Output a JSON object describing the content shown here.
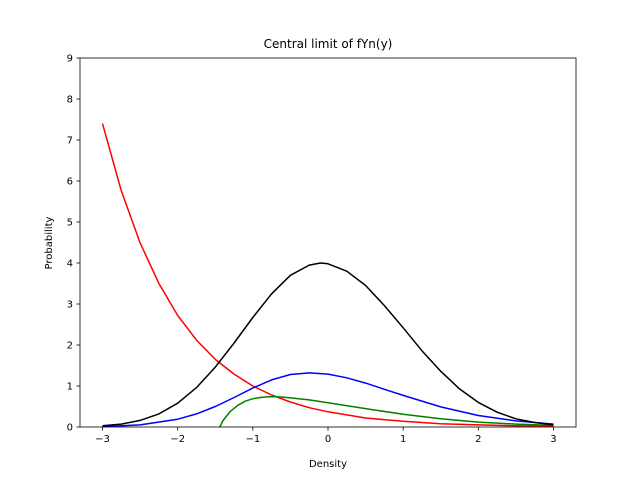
{
  "chart_data": {
    "type": "line",
    "title": "Central limit of fYn(y)",
    "xlabel": "Density",
    "ylabel": "Probability",
    "xlim": [
      -3.3,
      3.3
    ],
    "ylim": [
      0,
      9
    ],
    "grid": false,
    "legend": "none",
    "x_ticks": [
      {
        "value": -3,
        "label": "−3"
      },
      {
        "value": -2,
        "label": "−2"
      },
      {
        "value": -1,
        "label": "−1"
      },
      {
        "value": 0,
        "label": "0"
      },
      {
        "value": 1,
        "label": "1"
      },
      {
        "value": 2,
        "label": "2"
      },
      {
        "value": 3,
        "label": "3"
      }
    ],
    "y_ticks": [
      {
        "value": 0,
        "label": "0"
      },
      {
        "value": 1,
        "label": "1"
      },
      {
        "value": 2,
        "label": "2"
      },
      {
        "value": 3,
        "label": "3"
      },
      {
        "value": 4,
        "label": "4"
      },
      {
        "value": 5,
        "label": "5"
      },
      {
        "value": 6,
        "label": "6"
      },
      {
        "value": 7,
        "label": "7"
      },
      {
        "value": 8,
        "label": "8"
      },
      {
        "value": 9,
        "label": "9"
      }
    ],
    "series": [
      {
        "color": "#ff0000",
        "x": [
          -3,
          -2.75,
          -2.5,
          -2.25,
          -2,
          -1.75,
          -1.5,
          -1.25,
          -1,
          -0.75,
          -0.5,
          -0.25,
          0,
          0.5,
          1,
          1.5,
          2,
          2.5,
          3
        ],
        "y": [
          7.4,
          5.76,
          4.49,
          3.5,
          2.72,
          2.12,
          1.65,
          1.29,
          1.0,
          0.78,
          0.61,
          0.47,
          0.37,
          0.22,
          0.14,
          0.08,
          0.05,
          0.03,
          0.02
        ]
      },
      {
        "color": "#0000ff",
        "x": [
          -3,
          -2.5,
          -2,
          -1.75,
          -1.5,
          -1.25,
          -1,
          -0.75,
          -0.5,
          -0.25,
          0,
          0.25,
          0.5,
          0.75,
          1,
          1.5,
          2,
          2.5,
          3
        ],
        "y": [
          0.01,
          0.05,
          0.19,
          0.32,
          0.5,
          0.72,
          0.95,
          1.15,
          1.28,
          1.32,
          1.29,
          1.2,
          1.07,
          0.92,
          0.77,
          0.49,
          0.28,
          0.15,
          0.07
        ]
      },
      {
        "color": "#008000",
        "x": [
          -1.44,
          -1.4,
          -1.3,
          -1.2,
          -1.1,
          -1.0,
          -0.9,
          -0.8,
          -0.7,
          -0.6,
          -0.5,
          -0.25,
          0,
          0.5,
          1,
          1.5,
          2,
          2.5,
          3
        ],
        "y": [
          0.0,
          0.15,
          0.38,
          0.53,
          0.63,
          0.69,
          0.72,
          0.74,
          0.74,
          0.73,
          0.71,
          0.66,
          0.59,
          0.45,
          0.31,
          0.2,
          0.12,
          0.07,
          0.04
        ]
      },
      {
        "color": "#000000",
        "x": [
          -3,
          -2.75,
          -2.5,
          -2.25,
          -2,
          -1.75,
          -1.5,
          -1.25,
          -1,
          -0.75,
          -0.5,
          -0.25,
          -0.1,
          0,
          0.25,
          0.5,
          0.75,
          1,
          1.25,
          1.5,
          1.75,
          2,
          2.25,
          2.5,
          2.75,
          3
        ],
        "y": [
          0.03,
          0.07,
          0.16,
          0.32,
          0.58,
          0.96,
          1.46,
          2.05,
          2.67,
          3.25,
          3.7,
          3.95,
          4.0,
          3.98,
          3.8,
          3.45,
          2.96,
          2.42,
          1.86,
          1.36,
          0.93,
          0.6,
          0.36,
          0.2,
          0.11,
          0.05
        ]
      }
    ]
  }
}
